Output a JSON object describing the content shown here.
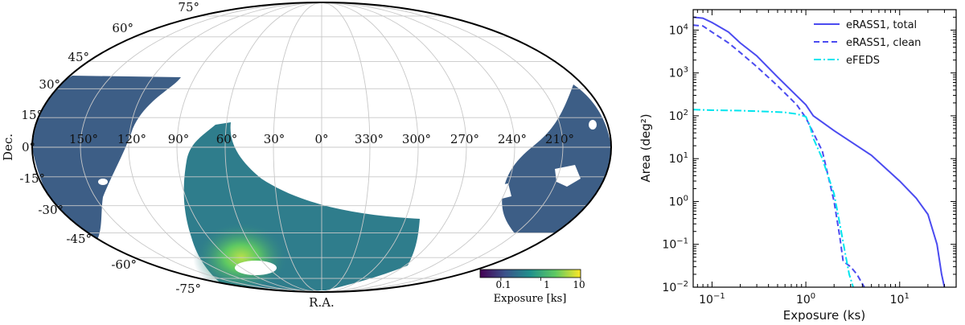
{
  "chart_data": [
    {
      "type": "heatmap",
      "projection": "mollweide",
      "xlabel": "R.A.",
      "ylabel": "Dec.",
      "ra_labels": [
        "150°",
        "120°",
        "90°",
        "60°",
        "30°",
        "0°",
        "330°",
        "300°",
        "270°",
        "240°",
        "210°"
      ],
      "dec_labels": [
        "75°",
        "60°",
        "45°",
        "30°",
        "15°",
        "0°",
        "-15°",
        "-30°",
        "-45°",
        "-60°",
        "-75°"
      ],
      "colorbar": {
        "label": "Exposure [ks]",
        "ticks": [
          "0.1",
          "1",
          "10"
        ],
        "scale": "log",
        "range": [
          0.03,
          10
        ],
        "colormap": [
          "#440154",
          "#3b528b",
          "#21918c",
          "#5ec962",
          "#fde725"
        ]
      },
      "grid": true
    },
    {
      "type": "line",
      "xlabel": "Exposure (ks)",
      "ylabel": "Area (deg²)",
      "xscale": "log",
      "yscale": "log",
      "xlim": [
        0.063,
        40
      ],
      "ylim": [
        0.01,
        30000
      ],
      "xticks": [
        {
          "base": "10",
          "exp": "−1",
          "value": 0.1
        },
        {
          "base": "10",
          "exp": "0",
          "value": 1
        },
        {
          "base": "10",
          "exp": "1",
          "value": 10
        }
      ],
      "yticks": [
        {
          "base": "10",
          "exp": "−2",
          "value": 0.01
        },
        {
          "base": "10",
          "exp": "−1",
          "value": 0.1
        },
        {
          "base": "10",
          "exp": "0",
          "value": 1
        },
        {
          "base": "10",
          "exp": "1",
          "value": 10
        },
        {
          "base": "10",
          "exp": "2",
          "value": 100
        },
        {
          "base": "10",
          "exp": "3",
          "value": 1000
        },
        {
          "base": "10",
          "exp": "4",
          "value": 10000
        }
      ],
      "legend_position": "top-right",
      "series": [
        {
          "name": "eRASS1, total",
          "color": "#4b4bf0",
          "style": "solid",
          "points": [
            [
              0.063,
              20000
            ],
            [
              0.08,
              19000
            ],
            [
              0.1,
              15000
            ],
            [
              0.15,
              9000
            ],
            [
              0.2,
              5000
            ],
            [
              0.3,
              2500
            ],
            [
              0.5,
              800
            ],
            [
              1.0,
              180
            ],
            [
              1.2,
              100
            ],
            [
              2,
              45
            ],
            [
              5,
              12
            ],
            [
              10,
              3
            ],
            [
              15,
              1.2
            ],
            [
              20,
              0.5
            ],
            [
              25,
              0.1
            ],
            [
              28,
              0.02
            ],
            [
              30,
              0.01
            ]
          ]
        },
        {
          "name": "eRASS1, clean",
          "color": "#4b4bf0",
          "style": "dashed",
          "points": [
            [
              0.063,
              13000
            ],
            [
              0.08,
              12500
            ],
            [
              0.1,
              9000
            ],
            [
              0.15,
              5000
            ],
            [
              0.2,
              3000
            ],
            [
              0.3,
              1400
            ],
            [
              0.5,
              500
            ],
            [
              0.8,
              180
            ],
            [
              1.0,
              90
            ],
            [
              1.5,
              15
            ],
            [
              2.0,
              1.0
            ],
            [
              2.3,
              0.15
            ],
            [
              2.5,
              0.04
            ],
            [
              3.0,
              0.03
            ],
            [
              3.5,
              0.02
            ],
            [
              4.2,
              0.01
            ]
          ]
        },
        {
          "name": "eFEDS",
          "color": "#00e5ee",
          "style": "dashdot",
          "points": [
            [
              0.063,
              140
            ],
            [
              0.1,
              135
            ],
            [
              0.2,
              132
            ],
            [
              0.4,
              125
            ],
            [
              0.6,
              120
            ],
            [
              0.8,
              110
            ],
            [
              1.0,
              95
            ],
            [
              1.1,
              60
            ],
            [
              1.2,
              30
            ],
            [
              1.5,
              10
            ],
            [
              2.0,
              1.5
            ],
            [
              2.3,
              0.3
            ],
            [
              2.6,
              0.07
            ],
            [
              2.9,
              0.02
            ],
            [
              3.2,
              0.01
            ]
          ]
        }
      ]
    }
  ]
}
